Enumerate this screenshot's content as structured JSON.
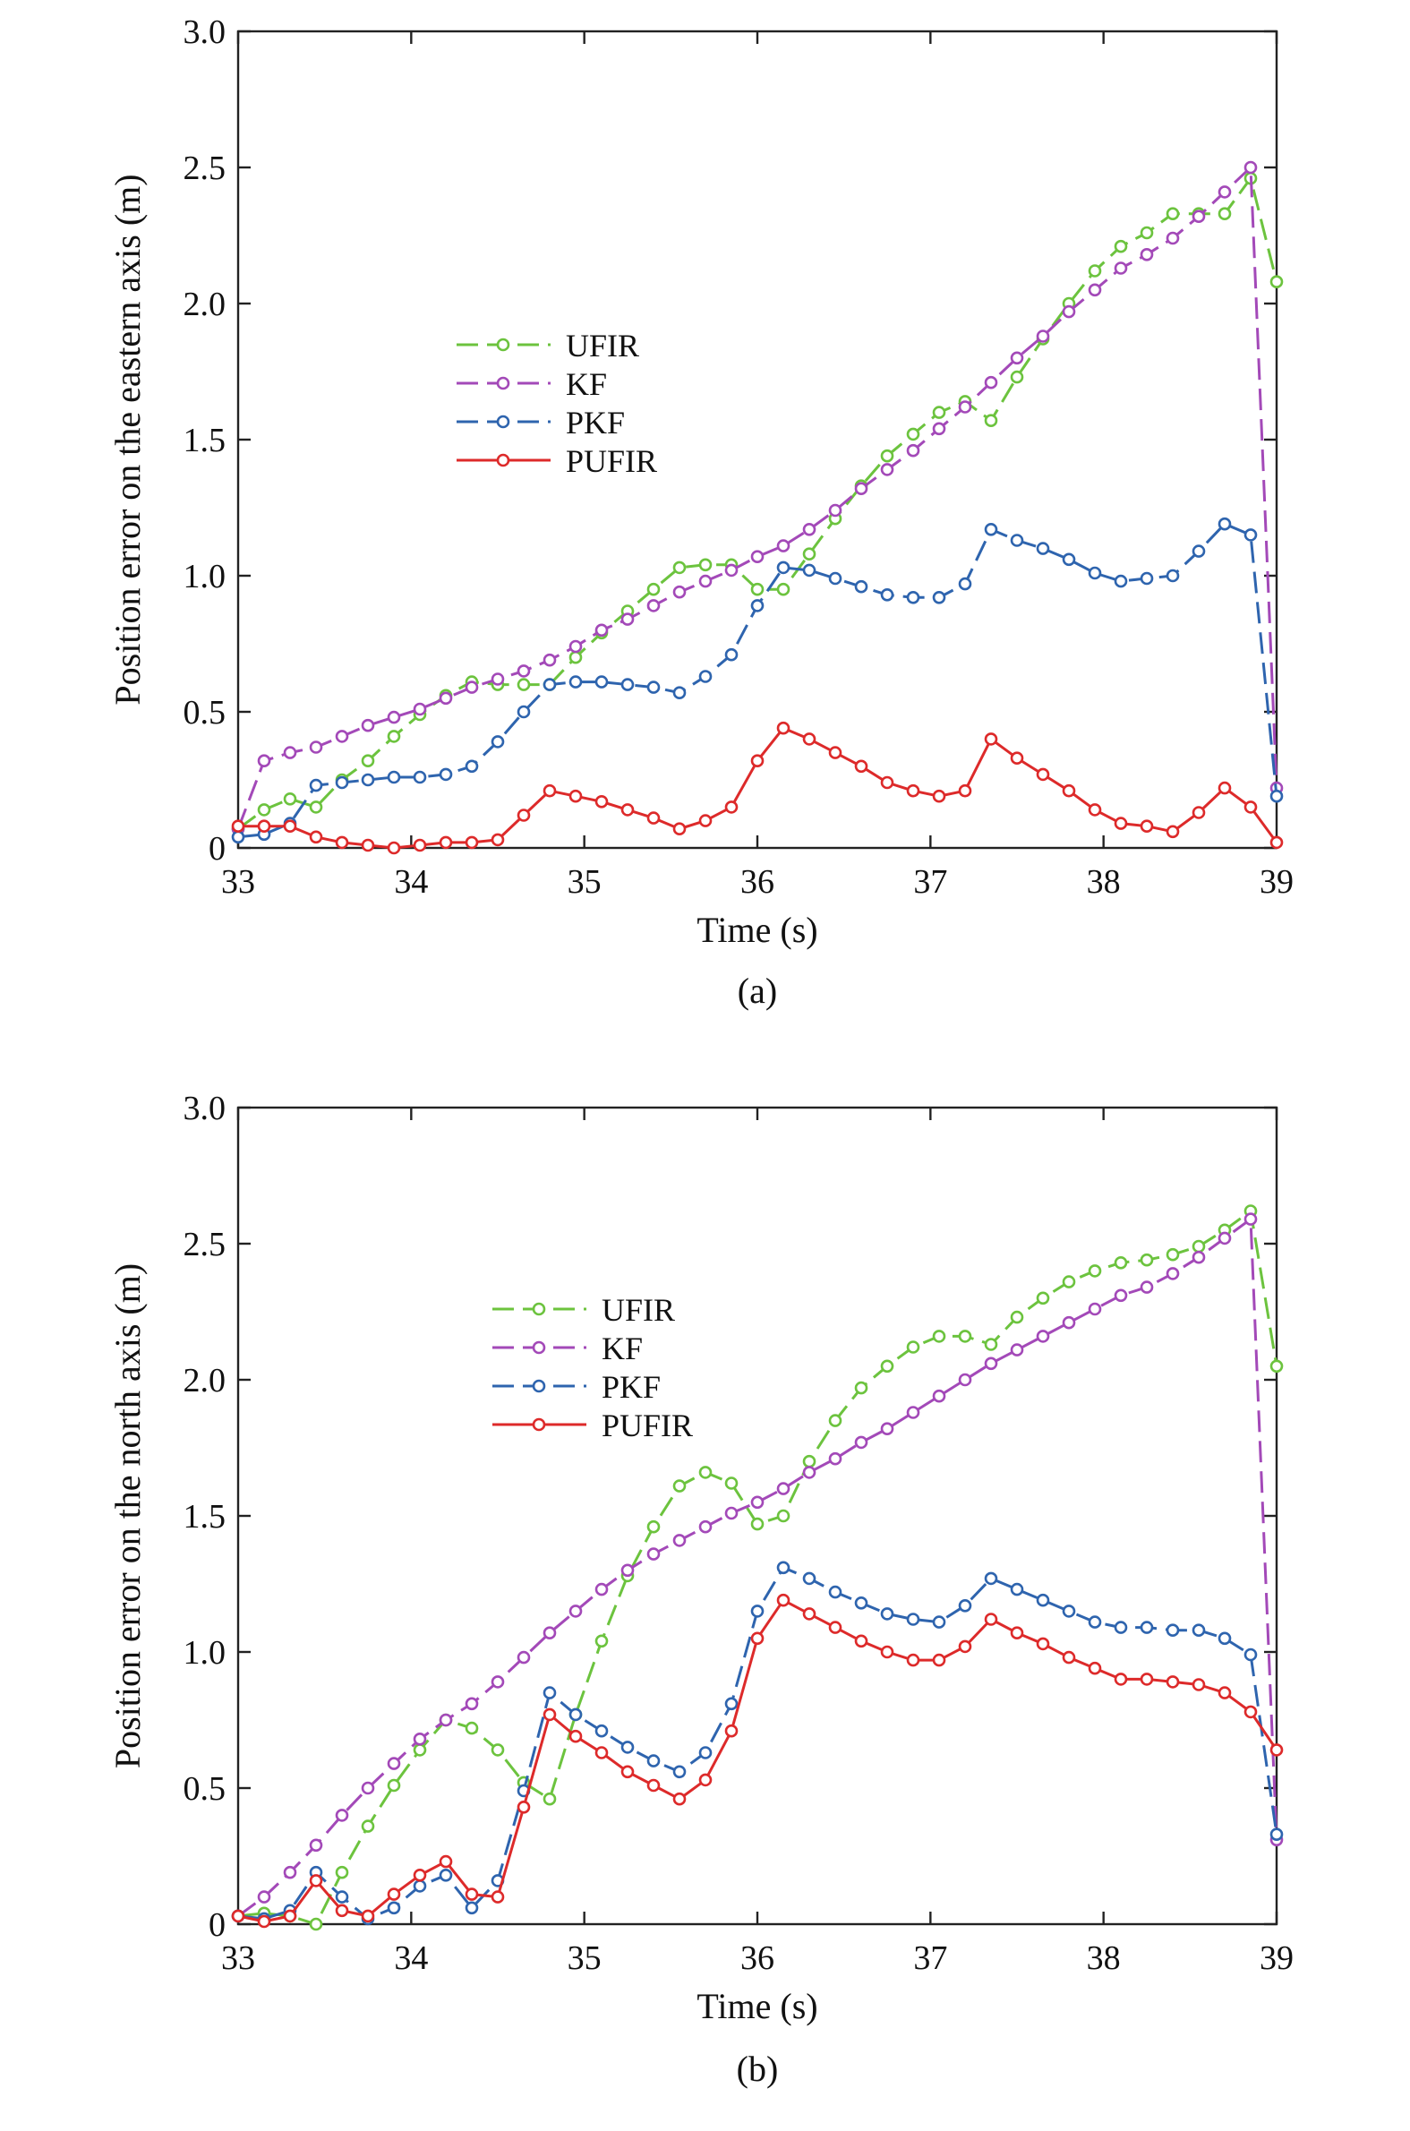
{
  "chart_data": [
    {
      "type": "line",
      "caption": "(a)",
      "xlabel": "Time (s)",
      "ylabel": "Position error on the eastern axis (m)",
      "xlim": [
        33,
        39
      ],
      "ylim": [
        0,
        3.0
      ],
      "xticks": [
        "33",
        "34",
        "35",
        "36",
        "37",
        "38",
        "39"
      ],
      "yticks": [
        "0",
        "0.5",
        "1.0",
        "1.5",
        "2.0",
        "2.5",
        "3.0"
      ],
      "legend": "center-left",
      "grid": false,
      "x": [
        33.0,
        33.15,
        33.3,
        33.45,
        33.6,
        33.75,
        33.9,
        34.05,
        34.2,
        34.35,
        34.5,
        34.65,
        34.8,
        34.95,
        35.1,
        35.25,
        35.4,
        35.55,
        35.7,
        35.85,
        36.0,
        36.15,
        36.3,
        36.45,
        36.6,
        36.75,
        36.9,
        37.05,
        37.2,
        37.35,
        37.5,
        37.65,
        37.8,
        37.95,
        38.1,
        38.25,
        38.4,
        38.55,
        38.7,
        38.85,
        39.0
      ],
      "series": [
        {
          "name": "UFIR",
          "color": "#6cc33e",
          "dash": "dashed",
          "values": [
            0.07,
            0.14,
            0.18,
            0.15,
            0.25,
            0.32,
            0.41,
            0.49,
            0.56,
            0.61,
            0.6,
            0.6,
            0.6,
            0.7,
            0.79,
            0.87,
            0.95,
            1.03,
            1.04,
            1.04,
            0.95,
            0.95,
            1.08,
            1.21,
            1.33,
            1.44,
            1.52,
            1.6,
            1.64,
            1.57,
            1.73,
            1.87,
            2.0,
            2.12,
            2.21,
            2.26,
            2.33,
            2.33,
            2.33,
            2.46,
            2.08
          ]
        },
        {
          "name": "KF",
          "color": "#a349b8",
          "dash": "dashed",
          "values": [
            0.07,
            0.32,
            0.35,
            0.37,
            0.41,
            0.45,
            0.48,
            0.51,
            0.55,
            0.59,
            0.62,
            0.65,
            0.69,
            0.74,
            0.8,
            0.84,
            0.89,
            0.94,
            0.98,
            1.02,
            1.07,
            1.11,
            1.17,
            1.24,
            1.32,
            1.39,
            1.46,
            1.54,
            1.62,
            1.71,
            1.8,
            1.88,
            1.97,
            2.05,
            2.13,
            2.18,
            2.24,
            2.32,
            2.41,
            2.5,
            0.22
          ]
        },
        {
          "name": "PKF",
          "color": "#2e64ae",
          "dash": "dashed",
          "values": [
            0.04,
            0.05,
            0.09,
            0.23,
            0.24,
            0.25,
            0.26,
            0.26,
            0.27,
            0.3,
            0.39,
            0.5,
            0.6,
            0.61,
            0.61,
            0.6,
            0.59,
            0.57,
            0.63,
            0.71,
            0.89,
            1.03,
            1.02,
            0.99,
            0.96,
            0.93,
            0.92,
            0.92,
            0.97,
            1.17,
            1.13,
            1.1,
            1.06,
            1.01,
            0.98,
            0.99,
            1.0,
            1.09,
            1.19,
            1.15,
            0.19
          ]
        },
        {
          "name": "PUFIR",
          "color": "#dd2a2a",
          "dash": "solid",
          "values": [
            0.08,
            0.08,
            0.08,
            0.04,
            0.02,
            0.01,
            0.0,
            0.01,
            0.02,
            0.02,
            0.03,
            0.12,
            0.21,
            0.19,
            0.17,
            0.14,
            0.11,
            0.07,
            0.1,
            0.15,
            0.32,
            0.44,
            0.4,
            0.35,
            0.3,
            0.24,
            0.21,
            0.19,
            0.21,
            0.4,
            0.33,
            0.27,
            0.21,
            0.14,
            0.09,
            0.08,
            0.06,
            0.13,
            0.22,
            0.15,
            0.02
          ]
        }
      ]
    },
    {
      "type": "line",
      "caption": "(b)",
      "xlabel": "Time (s)",
      "ylabel": "Position error on the north axis (m)",
      "xlim": [
        33,
        39
      ],
      "ylim": [
        0,
        3.0
      ],
      "xticks": [
        "33",
        "34",
        "35",
        "36",
        "37",
        "38",
        "39"
      ],
      "yticks": [
        "0",
        "0.5",
        "1.0",
        "1.5",
        "2.0",
        "2.5",
        "3.0"
      ],
      "legend": "center-left",
      "grid": false,
      "x": [
        33.0,
        33.15,
        33.3,
        33.45,
        33.6,
        33.75,
        33.9,
        34.05,
        34.2,
        34.35,
        34.5,
        34.65,
        34.8,
        34.95,
        35.1,
        35.25,
        35.4,
        35.55,
        35.7,
        35.85,
        36.0,
        36.15,
        36.3,
        36.45,
        36.6,
        36.75,
        36.9,
        37.05,
        37.2,
        37.35,
        37.5,
        37.65,
        37.8,
        37.95,
        38.1,
        38.25,
        38.4,
        38.55,
        38.7,
        38.85,
        39.0
      ],
      "series": [
        {
          "name": "UFIR",
          "color": "#6cc33e",
          "dash": "dashed",
          "values": [
            0.03,
            0.04,
            0.03,
            0.0,
            0.19,
            0.36,
            0.51,
            0.64,
            0.75,
            0.72,
            0.64,
            0.52,
            0.46,
            0.77,
            1.04,
            1.28,
            1.46,
            1.61,
            1.66,
            1.62,
            1.47,
            1.5,
            1.7,
            1.85,
            1.97,
            2.05,
            2.12,
            2.16,
            2.16,
            2.13,
            2.23,
            2.3,
            2.36,
            2.4,
            2.43,
            2.44,
            2.46,
            2.49,
            2.55,
            2.62,
            2.05
          ]
        },
        {
          "name": "KF",
          "color": "#a349b8",
          "dash": "dashed",
          "values": [
            0.03,
            0.1,
            0.19,
            0.29,
            0.4,
            0.5,
            0.59,
            0.68,
            0.75,
            0.81,
            0.89,
            0.98,
            1.07,
            1.15,
            1.23,
            1.3,
            1.36,
            1.41,
            1.46,
            1.51,
            1.55,
            1.6,
            1.66,
            1.71,
            1.77,
            1.82,
            1.88,
            1.94,
            2.0,
            2.06,
            2.11,
            2.16,
            2.21,
            2.26,
            2.31,
            2.34,
            2.39,
            2.45,
            2.52,
            2.59,
            0.31
          ]
        },
        {
          "name": "PKF",
          "color": "#2e64ae",
          "dash": "dashed",
          "values": [
            0.03,
            0.02,
            0.05,
            0.19,
            0.1,
            0.02,
            0.06,
            0.14,
            0.18,
            0.06,
            0.16,
            0.49,
            0.85,
            0.77,
            0.71,
            0.65,
            0.6,
            0.56,
            0.63,
            0.81,
            1.15,
            1.31,
            1.27,
            1.22,
            1.18,
            1.14,
            1.12,
            1.11,
            1.17,
            1.27,
            1.23,
            1.19,
            1.15,
            1.11,
            1.09,
            1.09,
            1.08,
            1.08,
            1.05,
            0.99,
            0.33
          ]
        },
        {
          "name": "PUFIR",
          "color": "#dd2a2a",
          "dash": "solid",
          "values": [
            0.03,
            0.01,
            0.03,
            0.16,
            0.05,
            0.03,
            0.11,
            0.18,
            0.23,
            0.11,
            0.1,
            0.43,
            0.77,
            0.69,
            0.63,
            0.56,
            0.51,
            0.46,
            0.53,
            0.71,
            1.05,
            1.19,
            1.14,
            1.09,
            1.04,
            1.0,
            0.97,
            0.97,
            1.02,
            1.12,
            1.07,
            1.03,
            0.98,
            0.94,
            0.9,
            0.9,
            0.89,
            0.88,
            0.85,
            0.78,
            0.64
          ]
        }
      ]
    }
  ]
}
